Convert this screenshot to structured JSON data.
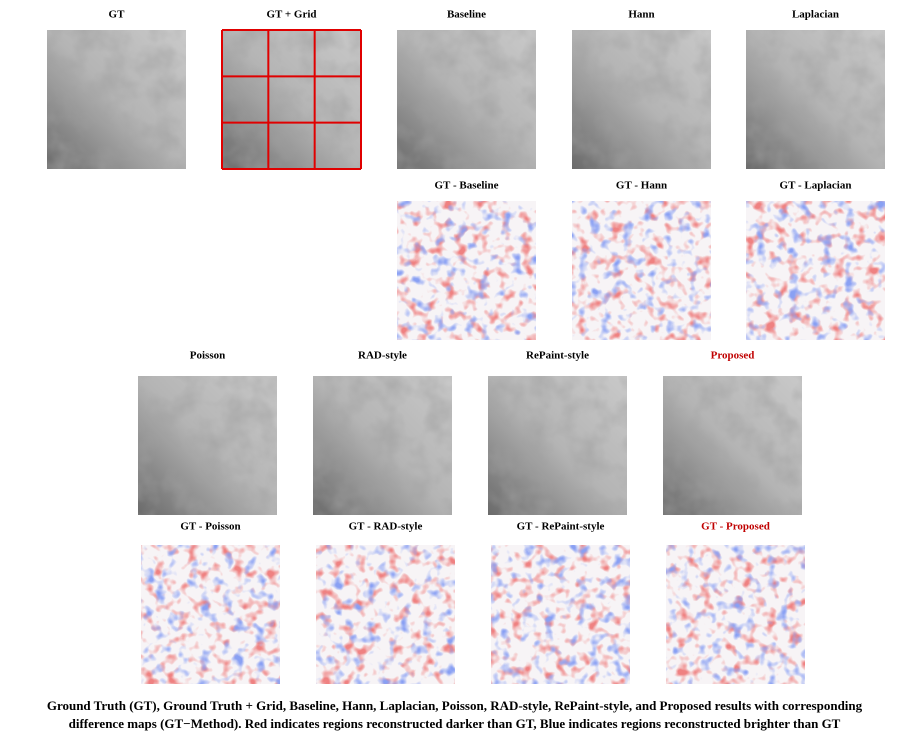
{
  "panels": [
    {
      "title": "GT"
    },
    {
      "title": "GT + Grid"
    },
    {
      "title": "Baseline"
    },
    {
      "title": "Hann"
    },
    {
      "title": "Laplacian"
    },
    {
      "title": "GT - Baseline"
    },
    {
      "title": "GT - Hann"
    },
    {
      "title": "GT - Laplacian"
    },
    {
      "title": "Poisson"
    },
    {
      "title": "RAD-style"
    },
    {
      "title": "RePaint-style"
    },
    {
      "title": "Proposed"
    },
    {
      "title": "GT - Poisson"
    },
    {
      "title": "GT - RAD-style"
    },
    {
      "title": "GT - RePaint-style"
    },
    {
      "title": "GT - Proposed"
    }
  ],
  "caption": {
    "lines": [
      "Ground Truth (GT), Ground Truth + Grid, Baseline, Hann, Laplacian, Poisson, RAD-style, RePaint-style, and Proposed results with corresponding",
      "difference maps (GT−Method). Red indicates regions reconstructed darker than GT, Blue indicates regions reconstructed brighter than GT"
    ]
  }
}
